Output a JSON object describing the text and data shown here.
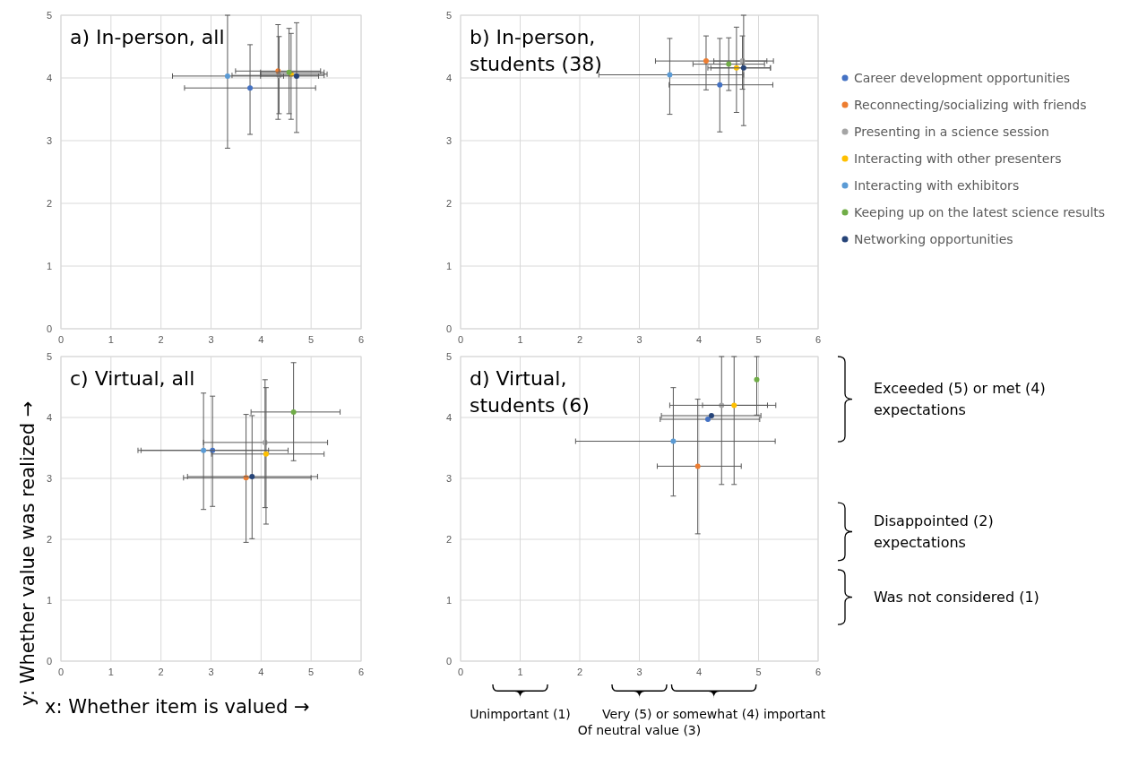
{
  "chart_data": [
    {
      "type": "scatter",
      "title": "a) In-person, all",
      "xlim": [
        0,
        6
      ],
      "ylim": [
        0,
        5
      ],
      "xticks": [
        0,
        1,
        2,
        3,
        4,
        5,
        6
      ],
      "yticks": [
        0,
        1,
        2,
        3,
        4,
        5
      ],
      "grid": true,
      "marker": "circle",
      "series": [
        {
          "color": "#4472c4",
          "x": [
            3.78
          ],
          "values": [
            3.84
          ],
          "errors": [
            [
              3.1,
              4.53
            ]
          ],
          "xerrors": [
            [
              2.47,
              5.09
            ]
          ]
        },
        {
          "color": "#ed7d31",
          "x": [
            4.34
          ],
          "values": [
            4.11
          ],
          "errors": [
            [
              3.34,
              4.85
            ]
          ],
          "xerrors": [
            [
              3.49,
              5.19
            ]
          ]
        },
        {
          "color": "#a5a5a5",
          "x": [
            4.36
          ],
          "values": [
            4.04
          ],
          "errors": [
            [
              3.43,
              4.66
            ]
          ],
          "xerrors": [
            [
              3.42,
              5.26
            ]
          ]
        },
        {
          "color": "#ffc000",
          "x": [
            4.6
          ],
          "values": [
            4.06
          ],
          "errors": [
            [
              3.34,
              4.71
            ]
          ],
          "xerrors": [
            [
              3.99,
              5.32
            ]
          ]
        },
        {
          "color": "#5b9bd5",
          "x": [
            3.33
          ],
          "values": [
            4.03
          ],
          "errors": [
            [
              2.88,
              5
            ]
          ],
          "xerrors": [
            [
              2.23,
              4.45
            ]
          ]
        },
        {
          "color": "#70ad47",
          "x": [
            4.56
          ],
          "values": [
            4.09
          ],
          "errors": [
            [
              3.43,
              4.79
            ]
          ],
          "xerrors": [
            [
              3.99,
              5.26
            ]
          ]
        },
        {
          "color": "#264478",
          "x": [
            4.71
          ],
          "values": [
            4.03
          ],
          "errors": [
            [
              3.13,
              4.88
            ]
          ],
          "xerrors": [
            [
              3.99,
              5.15
            ]
          ]
        }
      ]
    },
    {
      "type": "scatter",
      "title": "b) In-person, students (38)",
      "xlim": [
        0,
        6
      ],
      "ylim": [
        0,
        5
      ],
      "xticks": [
        0,
        1,
        2,
        3,
        4,
        5,
        6
      ],
      "yticks": [
        0,
        1,
        2,
        3,
        4,
        5
      ],
      "grid": true,
      "marker": "circle",
      "legend": "right",
      "series": [
        {
          "name": "Career development opportunities",
          "color": "#4472c4",
          "x": [
            4.35
          ],
          "values": [
            3.89
          ],
          "errors": [
            [
              3.14,
              4.63
            ]
          ],
          "xerrors": [
            [
              3.5,
              5.24
            ]
          ]
        },
        {
          "name": "Reconnecting/socializing with friends",
          "color": "#ed7d31",
          "x": [
            4.12
          ],
          "values": [
            4.27
          ],
          "errors": [
            [
              3.81,
              4.67
            ]
          ],
          "xerrors": [
            [
              3.27,
              5.14
            ]
          ]
        },
        {
          "name": "Presenting in a science session",
          "color": "#a5a5a5",
          "x": [
            4.73
          ],
          "values": [
            4.27
          ],
          "errors": [
            [
              3.82,
              4.67
            ]
          ],
          "xerrors": [
            [
              4.25,
              5.25
            ]
          ]
        },
        {
          "name": "Interacting with other presenters",
          "color": "#ffc000",
          "x": [
            4.63
          ],
          "values": [
            4.16
          ],
          "errors": [
            [
              3.45,
              4.81
            ]
          ],
          "xerrors": [
            [
              4.15,
              5.2
            ]
          ]
        },
        {
          "name": "Interacting with exhibitors",
          "color": "#5b9bd5",
          "x": [
            3.51
          ],
          "values": [
            4.05
          ],
          "errors": [
            [
              3.42,
              4.63
            ]
          ],
          "xerrors": [
            [
              2.32,
              4.75
            ]
          ]
        },
        {
          "name": "Keeping up on the latest science results",
          "color": "#70ad47",
          "x": [
            4.5
          ],
          "values": [
            4.22
          ],
          "errors": [
            [
              3.8,
              4.64
            ]
          ],
          "xerrors": [
            [
              3.9,
              5.1
            ]
          ]
        },
        {
          "name": "Networking opportunities",
          "color": "#264478",
          "x": [
            4.75
          ],
          "values": [
            4.16
          ],
          "errors": [
            [
              3.24,
              5
            ]
          ],
          "xerrors": [
            [
              4.2,
              5.2
            ]
          ]
        }
      ]
    },
    {
      "type": "scatter",
      "title": "c) Virtual, all",
      "xlabel": "x: Whether item is valued →",
      "ylabel": "y: Whether value was realized →",
      "xlim": [
        0,
        6
      ],
      "ylim": [
        0,
        5
      ],
      "xticks": [
        0,
        1,
        2,
        3,
        4,
        5,
        6
      ],
      "yticks": [
        0,
        1,
        2,
        3,
        4,
        5
      ],
      "grid": true,
      "marker": "circle",
      "series": [
        {
          "color": "#4472c4",
          "x": [
            3.03
          ],
          "values": [
            3.46
          ],
          "errors": [
            [
              2.54,
              4.35
            ]
          ],
          "xerrors": [
            [
              1.6,
              4.15
            ]
          ]
        },
        {
          "color": "#ed7d31",
          "x": [
            3.7
          ],
          "values": [
            3.01
          ],
          "errors": [
            [
              1.95,
              4.05
            ]
          ],
          "xerrors": [
            [
              2.45,
              5.0
            ]
          ]
        },
        {
          "color": "#a5a5a5",
          "x": [
            4.08
          ],
          "values": [
            3.59
          ],
          "errors": [
            [
              2.52,
              4.62
            ]
          ],
          "xerrors": [
            [
              2.85,
              5.33
            ]
          ]
        },
        {
          "color": "#ffc000",
          "x": [
            4.1
          ],
          "values": [
            3.4
          ],
          "errors": [
            [
              2.25,
              4.49
            ]
          ],
          "xerrors": [
            [
              3.01,
              5.26
            ]
          ]
        },
        {
          "color": "#5b9bd5",
          "x": [
            2.85
          ],
          "values": [
            3.46
          ],
          "errors": [
            [
              2.49,
              4.4
            ]
          ],
          "xerrors": [
            [
              1.54,
              4.54
            ]
          ]
        },
        {
          "color": "#70ad47",
          "x": [
            4.65
          ],
          "values": [
            4.09
          ],
          "errors": [
            [
              3.29,
              4.9
            ]
          ],
          "xerrors": [
            [
              3.8,
              5.58
            ]
          ]
        },
        {
          "color": "#264478",
          "x": [
            3.82
          ],
          "values": [
            3.03
          ],
          "errors": [
            [
              2.01,
              4.03
            ]
          ],
          "xerrors": [
            [
              2.53,
              5.13
            ]
          ]
        }
      ]
    },
    {
      "type": "scatter",
      "title": "d) Virtual, students (6)",
      "xlim": [
        0,
        6
      ],
      "ylim": [
        0,
        5
      ],
      "xticks": [
        0,
        1,
        2,
        3,
        4,
        5,
        6
      ],
      "yticks": [
        0,
        1,
        2,
        3,
        4,
        5
      ],
      "grid": true,
      "marker": "circle",
      "series": [
        {
          "color": "#4472c4",
          "x": [
            4.15
          ],
          "values": [
            3.97
          ],
          "xerrors": [
            [
              3.35,
              5.02
            ]
          ]
        },
        {
          "color": "#ed7d31",
          "x": [
            3.98
          ],
          "values": [
            3.2
          ],
          "errors": [
            [
              2.09,
              4.3
            ]
          ],
          "xerrors": [
            [
              3.3,
              4.71
            ]
          ]
        },
        {
          "color": "#a5a5a5",
          "x": [
            4.38
          ],
          "values": [
            4.2
          ],
          "errors": [
            [
              2.9,
              5
            ]
          ],
          "xerrors": [
            [
              3.51,
              5.15
            ]
          ]
        },
        {
          "color": "#ffc000",
          "x": [
            4.59
          ],
          "values": [
            4.2
          ],
          "errors": [
            [
              2.9,
              5
            ]
          ],
          "xerrors": [
            [
              4.06,
              5.29
            ]
          ]
        },
        {
          "color": "#5b9bd5",
          "x": [
            3.57
          ],
          "values": [
            3.61
          ],
          "errors": [
            [
              2.71,
              4.49
            ]
          ],
          "xerrors": [
            [
              1.93,
              5.28
            ]
          ]
        },
        {
          "color": "#70ad47",
          "x": [
            4.97
          ],
          "values": [
            4.62
          ],
          "errors": [
            [
              4.04,
              5
            ]
          ],
          "xerrors": [
            null
          ]
        },
        {
          "color": "#264478",
          "x": [
            4.21
          ],
          "values": [
            4.03
          ],
          "xerrors": [
            [
              3.37,
              5.04
            ]
          ]
        }
      ],
      "annotations": [
        "Exceeded (5) or met (4) expectations",
        "Disappointed (2) expectations",
        "Was not considered (1)",
        "Unimportant (1)",
        "Of neutral value (3)",
        "Very (5) or somewhat (4) important"
      ]
    }
  ]
}
